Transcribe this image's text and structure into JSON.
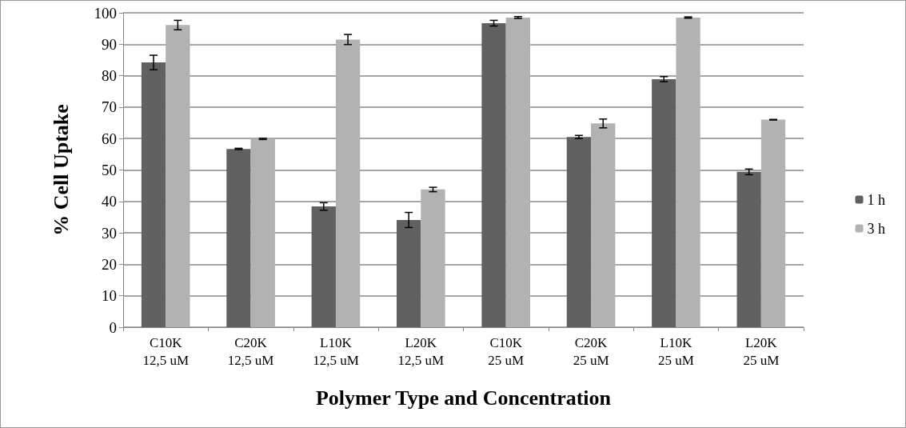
{
  "chart_data": {
    "type": "bar",
    "xlabel": "Polymer Type and Concentration",
    "ylabel": "% Cell Uptake",
    "categories": [
      "C10K\n12,5 uM",
      "C20K\n12,5 uM",
      "L10K\n12,5 uM",
      "L20K\n12,5 uM",
      "C10K\n25 uM",
      "C20K\n25 uM",
      "L10K\n25 uM",
      "L20K\n25 uM"
    ],
    "series": [
      {
        "name": "1 h",
        "color": "#616161",
        "values": [
          84.2,
          56.7,
          38.4,
          34.1,
          96.7,
          60.5,
          78.9,
          49.4
        ],
        "errors": [
          2.3,
          0.2,
          1.2,
          2.4,
          0.9,
          0.5,
          0.8,
          0.9
        ]
      },
      {
        "name": "3 h",
        "color": "#b2b2b2",
        "values": [
          96.1,
          59.9,
          91.5,
          43.8,
          98.5,
          64.8,
          98.5,
          66.0
        ],
        "errors": [
          1.5,
          0.2,
          1.6,
          0.7,
          0.3,
          1.4,
          0.2,
          0.1
        ]
      }
    ],
    "ylim": [
      0,
      100
    ],
    "yticks": [
      0,
      10,
      20,
      30,
      40,
      50,
      60,
      70,
      80,
      90,
      100
    ],
    "grid": "y",
    "legend": "right"
  }
}
